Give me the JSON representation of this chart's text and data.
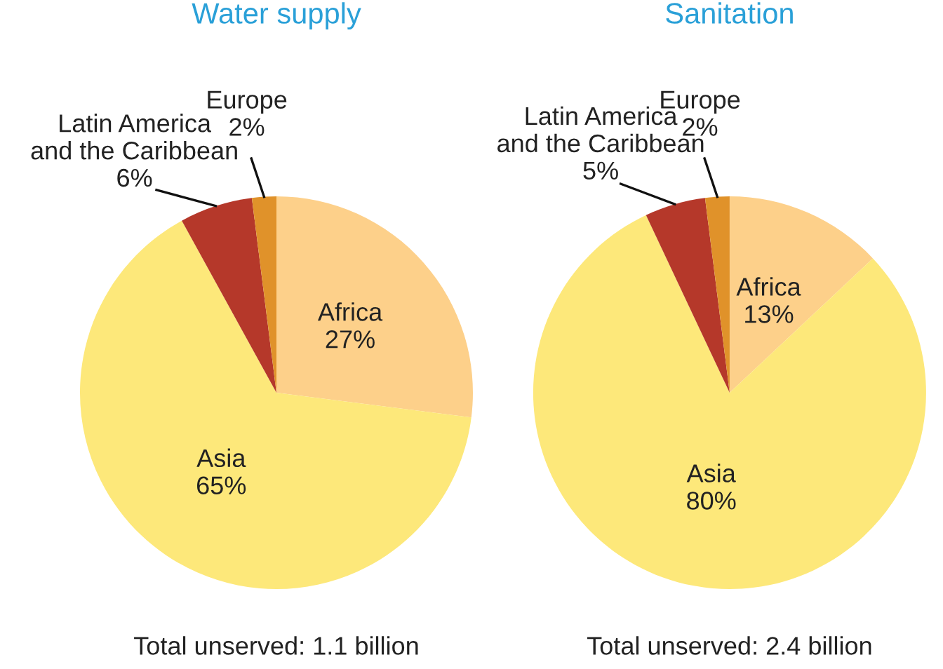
{
  "chart_data": [
    {
      "type": "pie",
      "title": "Water supply",
      "categories": [
        "Africa",
        "Asia",
        "Latin America\nand the Caribbean",
        "Europe"
      ],
      "values": [
        27,
        65,
        6,
        2
      ],
      "value_labels": [
        "27%",
        "65%",
        "6%",
        "2%"
      ],
      "colors": [
        "#fdd08a",
        "#fde87a",
        "#b5382a",
        "#e0922a"
      ],
      "annotations": [
        "Total unserved: 1.1 billion"
      ]
    },
    {
      "type": "pie",
      "title": "Sanitation",
      "categories": [
        "Africa",
        "Asia",
        "Latin America\nand the Caribbean",
        "Europe"
      ],
      "values": [
        13,
        80,
        5,
        2
      ],
      "value_labels": [
        "13%",
        "80%",
        "5%",
        "2%"
      ],
      "colors": [
        "#fdd08a",
        "#fde87a",
        "#b5382a",
        "#e0922a"
      ],
      "annotations": [
        "Total unserved: 2.4 billion"
      ]
    }
  ]
}
